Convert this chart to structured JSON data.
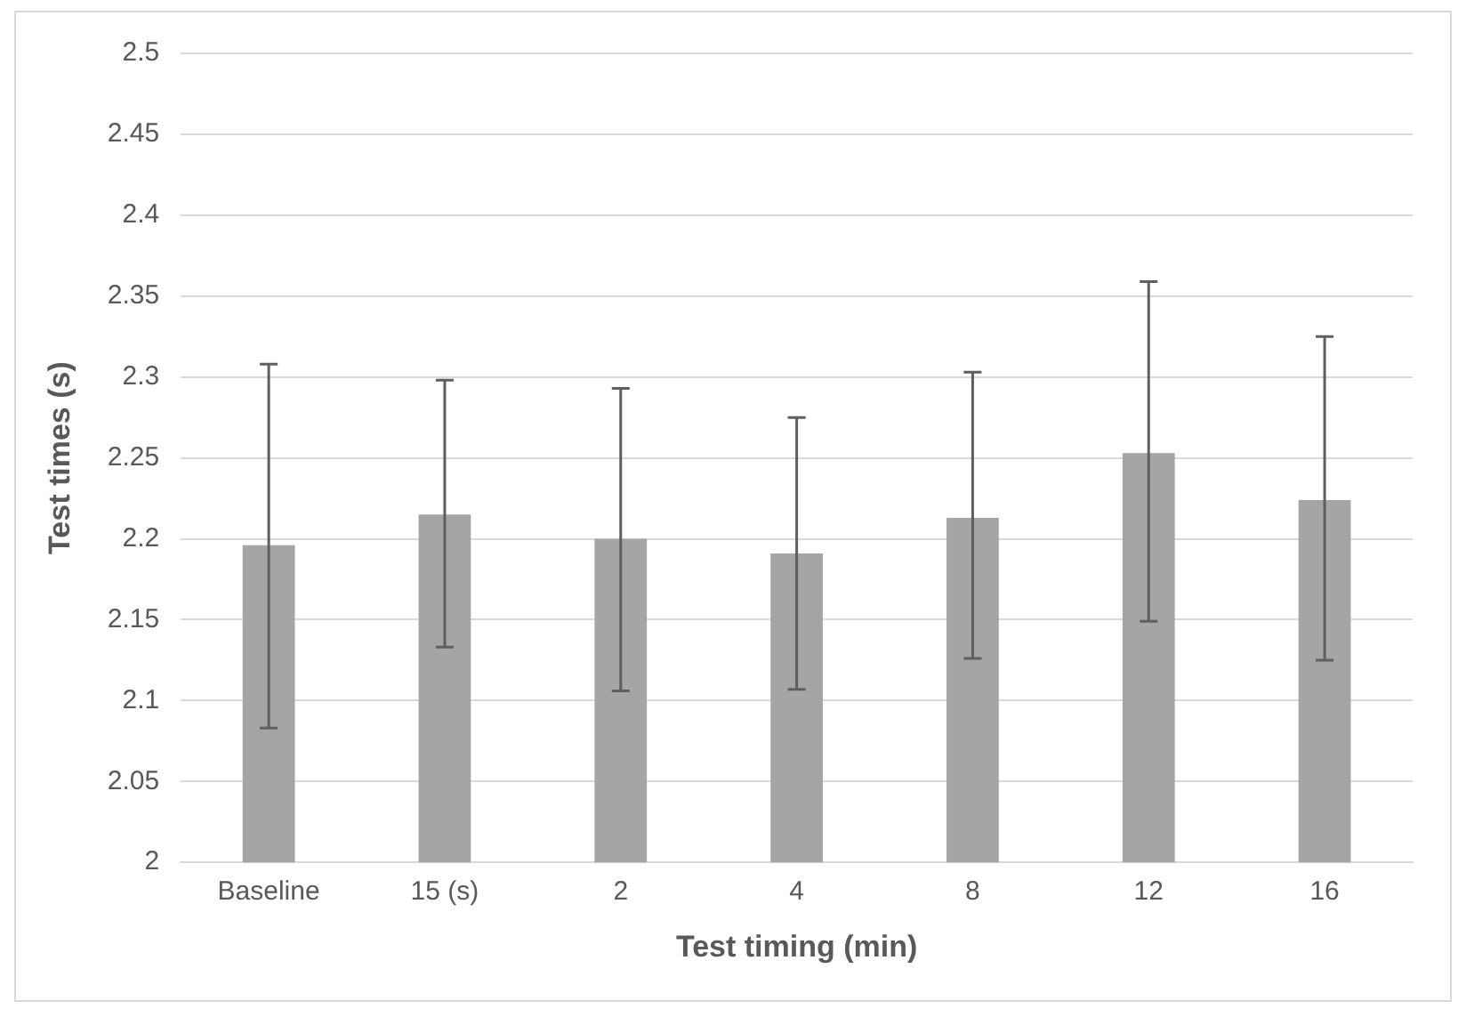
{
  "chart_data": {
    "type": "bar",
    "xlabel": "Test timing (min)",
    "ylabel": "Test times (s)",
    "categories": [
      "Baseline",
      "15 (s)",
      "2",
      "4",
      "8",
      "12",
      "16"
    ],
    "values": [
      2.196,
      2.215,
      2.2,
      2.191,
      2.213,
      2.253,
      2.224
    ],
    "errors": [
      [
        2.083,
        2.308
      ],
      [
        2.133,
        2.298
      ],
      [
        2.106,
        2.293
      ],
      [
        2.107,
        2.275
      ],
      [
        2.126,
        2.303
      ],
      [
        2.149,
        2.359
      ],
      [
        2.125,
        2.325
      ]
    ],
    "color": "#a5a5a5",
    "ylim": [
      2,
      2.5
    ],
    "yticks": [
      2,
      2.05,
      2.1,
      2.15,
      2.2,
      2.25,
      2.3,
      2.35,
      2.4,
      2.45,
      2.5
    ],
    "grid": "y",
    "legend": false
  }
}
